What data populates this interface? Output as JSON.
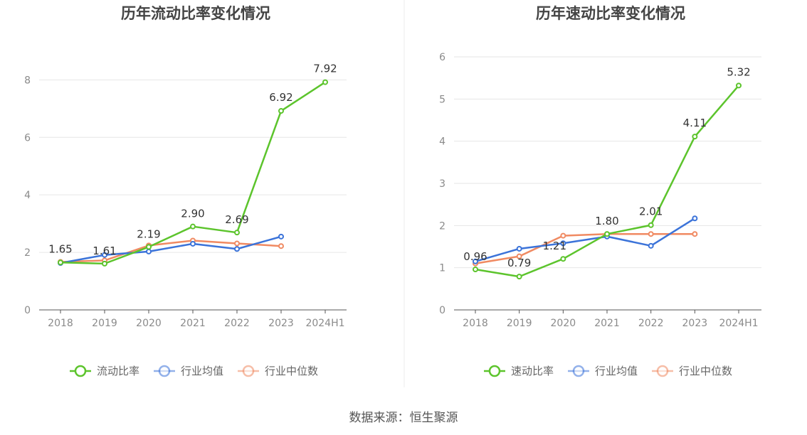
{
  "source": "数据来源：恒生聚源",
  "chart_data": [
    {
      "type": "line",
      "title": "历年流动比率变化情况",
      "categories": [
        "2018",
        "2019",
        "2020",
        "2021",
        "2022",
        "2023",
        "2024H1"
      ],
      "ylim": [
        0,
        8.8
      ],
      "yticks": [
        0,
        2,
        4,
        6,
        8
      ],
      "grid": true,
      "legend_position": "bottom",
      "series": [
        {
          "name": "流动比率",
          "color": "#5cc42c",
          "values": [
            1.65,
            1.61,
            2.19,
            2.9,
            2.69,
            6.92,
            7.92
          ],
          "labels": [
            "1.65",
            "1.61",
            "2.19",
            "2.90",
            "2.69",
            "6.92",
            "7.92"
          ]
        },
        {
          "name": "行业均值",
          "color": "#3b73d9",
          "values": [
            1.63,
            1.91,
            2.03,
            2.3,
            2.12,
            2.55,
            null
          ]
        },
        {
          "name": "行业中位数",
          "color": "#f08a62",
          "values": [
            1.67,
            1.72,
            2.24,
            2.41,
            2.31,
            2.22,
            null
          ]
        }
      ]
    },
    {
      "type": "line",
      "title": "历年速动比率变化情况",
      "categories": [
        "2018",
        "2019",
        "2020",
        "2021",
        "2022",
        "2023",
        "2024H1"
      ],
      "ylim": [
        0,
        6
      ],
      "yticks": [
        0,
        1,
        2,
        3,
        4,
        5,
        6
      ],
      "grid": true,
      "legend_position": "bottom",
      "series": [
        {
          "name": "速动比率",
          "color": "#5cc42c",
          "values": [
            0.96,
            0.79,
            1.21,
            1.8,
            2.01,
            4.11,
            5.32
          ],
          "labels": [
            "0.96",
            "0.79",
            "1.21",
            "1.80",
            "2.01",
            "4.11",
            "5.32"
          ]
        },
        {
          "name": "行业均值",
          "color": "#3b73d9",
          "values": [
            1.15,
            1.45,
            1.58,
            1.74,
            1.52,
            2.17,
            null
          ]
        },
        {
          "name": "行业中位数",
          "color": "#f08a62",
          "values": [
            1.1,
            1.27,
            1.76,
            1.8,
            1.8,
            1.8,
            null
          ]
        }
      ]
    }
  ]
}
